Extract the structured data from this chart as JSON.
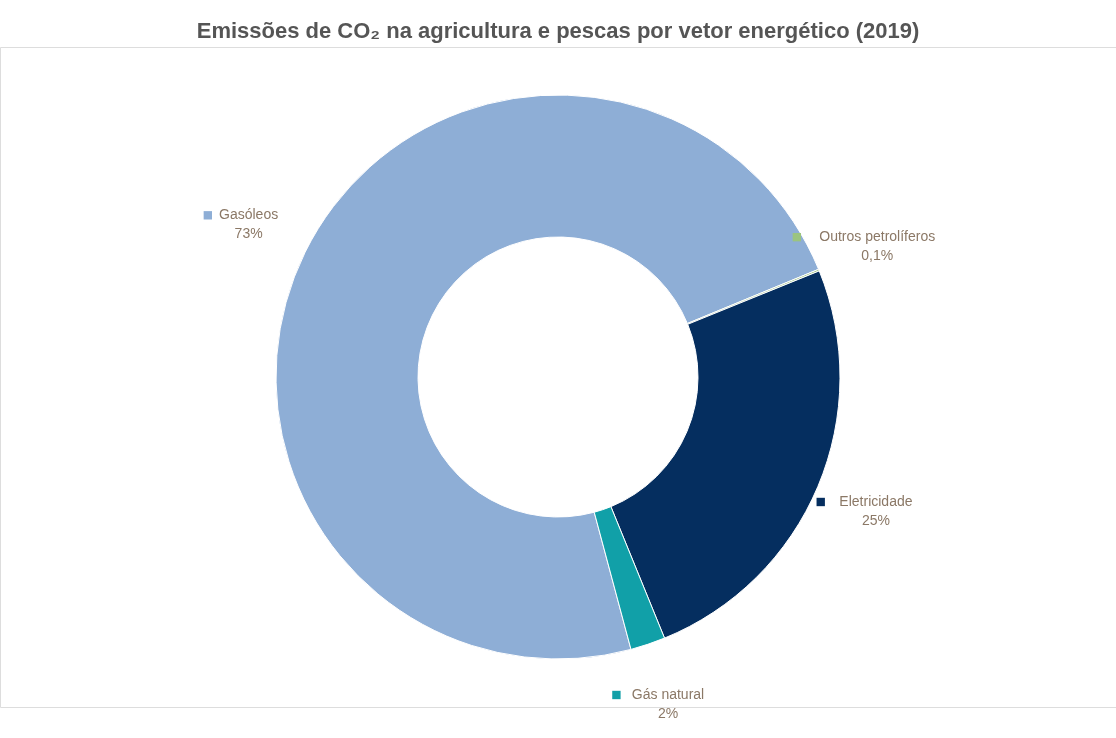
{
  "chart_data": {
    "type": "donut",
    "title": "Emissões de CO₂ na agricultura e pescas por vetor energético (2019)",
    "categories": [
      "Gasóleos",
      "Outros petrolíferos",
      "Eletricidade",
      "Gás natural"
    ],
    "values": [
      73,
      0.1,
      25,
      2
    ],
    "colors": [
      "#8eaed6",
      "#9bc47f",
      "#052e5f",
      "#11a0a8"
    ],
    "value_labels": [
      "73%",
      "0,1%",
      "25%",
      "2%"
    ],
    "legend": "right"
  }
}
